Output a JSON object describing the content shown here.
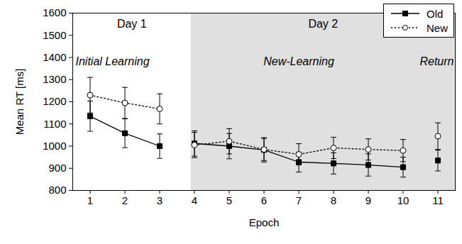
{
  "chart_data": {
    "type": "line",
    "x_label": "Epoch",
    "y_label": "Mean RT [ms]",
    "x": [
      1,
      2,
      3,
      4,
      5,
      6,
      7,
      8,
      9,
      10,
      11
    ],
    "xlim": [
      0.5,
      11.5
    ],
    "xticks": [
      1,
      2,
      3,
      4,
      5,
      6,
      7,
      8,
      9,
      10,
      11
    ],
    "ylim": [
      800,
      1600
    ],
    "yticks": [
      800,
      900,
      1000,
      1100,
      1200,
      1300,
      1400,
      1500,
      1600
    ],
    "grid": false,
    "legend": "top-right",
    "days": [
      {
        "label": "Day 1",
        "range": [
          0.5,
          3.9
        ],
        "color": "#ffffff"
      },
      {
        "label": "Day 2",
        "range": [
          3.9,
          11.5
        ],
        "color": "#e0e0e0"
      }
    ],
    "phases": [
      {
        "label": "Initial Learning",
        "epochs": [
          1,
          3
        ]
      },
      {
        "label": "New-Learning",
        "epochs": [
          4,
          10
        ]
      },
      {
        "label": "Return",
        "epochs": [
          11,
          11
        ]
      }
    ],
    "series": [
      {
        "name": "Old",
        "color": "#000000",
        "marker": "square",
        "line_style": "solid",
        "values": [
          1135,
          1058,
          1000,
          1012,
          1000,
          983,
          928,
          922,
          915,
          905,
          935
        ],
        "errors": [
          68,
          65,
          55,
          57,
          57,
          55,
          45,
          48,
          50,
          45,
          47
        ]
      },
      {
        "name": "New",
        "color": "#000000",
        "marker": "circle-open",
        "line_style": "dotted",
        "values": [
          1230,
          1195,
          1168,
          1005,
          1022,
          985,
          963,
          992,
          985,
          980,
          1045
        ],
        "errors": [
          80,
          70,
          68,
          57,
          57,
          50,
          48,
          48,
          48,
          50,
          60
        ]
      }
    ]
  }
}
